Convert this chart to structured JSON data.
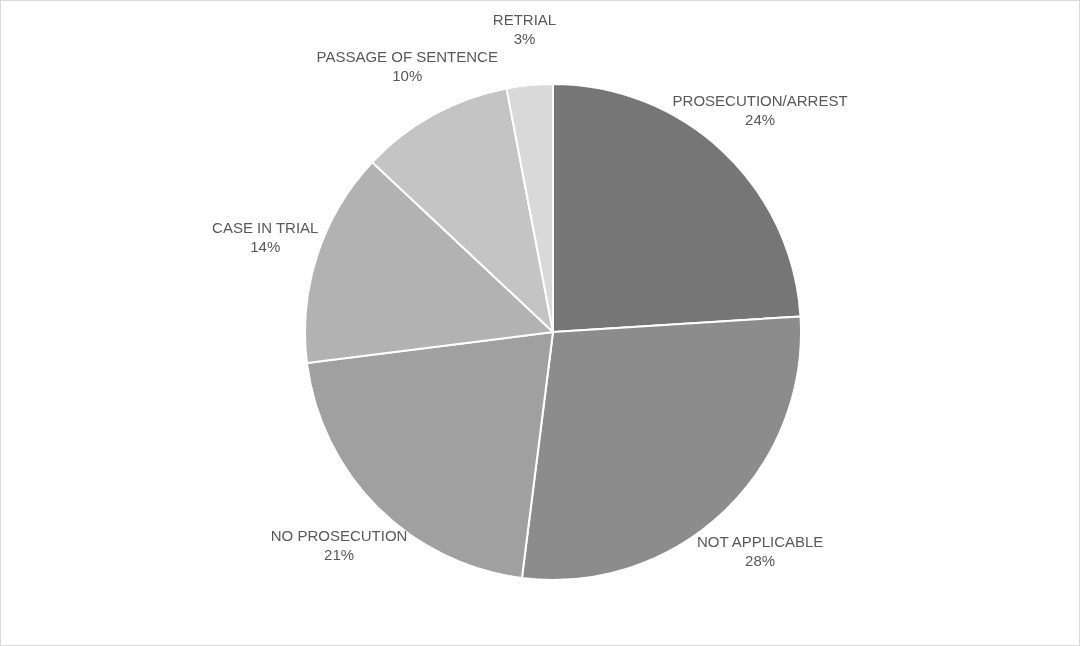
{
  "chart_data": {
    "type": "pie",
    "categories": [
      "PROSECUTION/ARREST",
      "NOT APPLICABLE",
      "NO PROSECUTION",
      "CASE IN TRIAL",
      "PASSAGE OF SENTENCE",
      "RETRIAL"
    ],
    "values": [
      24,
      28,
      21,
      14,
      10,
      3
    ],
    "value_labels": [
      "24%",
      "28%",
      "21%",
      "14%",
      "10%",
      "3%"
    ],
    "colors": [
      "#767676",
      "#8c8c8c",
      "#a0a0a0",
      "#b2b2b2",
      "#c4c4c4",
      "#d9d9d9"
    ],
    "legend": false
  }
}
